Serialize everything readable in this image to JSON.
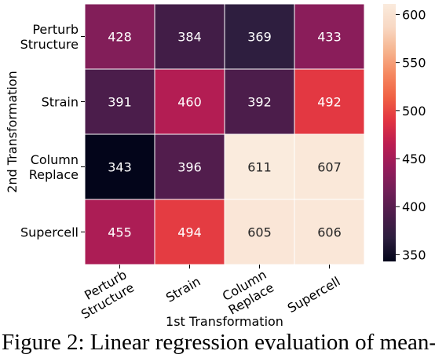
{
  "chart_data": {
    "type": "heatmap",
    "title": "",
    "xlabel": "1st Transformation",
    "ylabel": "2nd Transformation",
    "x_categories": [
      [
        "Perturb",
        "Structure"
      ],
      [
        "Strain"
      ],
      [
        "Column",
        "Replace"
      ],
      [
        "Supercell"
      ]
    ],
    "y_categories": [
      [
        "Perturb",
        "Structure"
      ],
      [
        "Strain"
      ],
      [
        "Column",
        "Replace"
      ],
      [
        "Supercell"
      ]
    ],
    "values": [
      [
        428,
        384,
        369,
        433
      ],
      [
        391,
        460,
        392,
        492
      ],
      [
        343,
        396,
        611,
        607
      ],
      [
        455,
        494,
        605,
        606
      ]
    ],
    "colorbar": {
      "min": 343,
      "max": 611,
      "ticks": [
        350,
        400,
        450,
        500,
        550,
        600
      ],
      "colormap": "rocket",
      "stops": [
        "#03051a",
        "#2c1e3e",
        "#4c1d4b",
        "#701f57",
        "#951c5b",
        "#bb1d51",
        "#e13342",
        "#f06043",
        "#f58860",
        "#f6b48e",
        "#f8d8c3",
        "#faebdd"
      ]
    }
  },
  "caption": "Figure 2: Linear regression evaluation of mean-"
}
